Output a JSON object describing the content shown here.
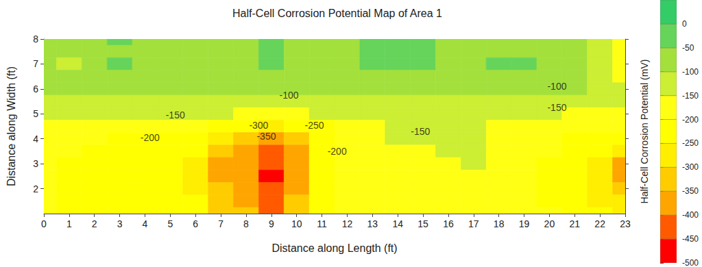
{
  "chart_data": {
    "type": "heatmap",
    "title": "Half-Cell Corrosion Potential Map of Area 1",
    "xlabel": "Distance along Length (ft)",
    "ylabel": "Distance along Width (ft)",
    "xlim": [
      0,
      23
    ],
    "ylim": [
      1,
      8
    ],
    "xticks": [
      0,
      1,
      2,
      3,
      4,
      5,
      6,
      7,
      8,
      9,
      10,
      11,
      12,
      13,
      14,
      15,
      16,
      17,
      18,
      19,
      20,
      21,
      22,
      23
    ],
    "yticks": [
      2,
      3,
      4,
      5,
      6,
      7,
      8
    ],
    "grid": false,
    "x": [
      0,
      1,
      2,
      3,
      4,
      5,
      6,
      7,
      8,
      9,
      10,
      11,
      12,
      13,
      14,
      15,
      16,
      17,
      18,
      19,
      20,
      21,
      22,
      23
    ],
    "y": [
      8,
      7.5,
      7,
      6.5,
      6,
      5.5,
      5,
      4.5,
      4,
      3.5,
      3,
      2.5,
      2,
      1.5,
      1
    ],
    "cells": [
      [
        -90,
        -80,
        -75,
        -45,
        -60,
        -80,
        -85,
        -85,
        -80,
        -40,
        -75,
        -80,
        -60,
        -45,
        -40,
        -45,
        -60,
        -80,
        -75,
        -75,
        -90,
        -95,
        -130,
        -170
      ],
      [
        -90,
        -90,
        -80,
        -50,
        -60,
        -85,
        -90,
        -90,
        -80,
        -40,
        -75,
        -85,
        -65,
        -45,
        -40,
        -45,
        -55,
        -80,
        -50,
        -55,
        -85,
        -95,
        -140,
        -170
      ],
      [
        -90,
        -110,
        -85,
        -45,
        -75,
        -90,
        -90,
        -90,
        -80,
        -45,
        -75,
        -85,
        -75,
        -45,
        -40,
        -45,
        -50,
        -85,
        -45,
        -45,
        -80,
        -95,
        -140,
        -165
      ],
      [
        -95,
        -95,
        -90,
        -75,
        -85,
        -90,
        -90,
        -90,
        -85,
        -70,
        -85,
        -90,
        -85,
        -70,
        -65,
        -70,
        -75,
        -90,
        -75,
        -80,
        -90,
        -95,
        -130,
        -160
      ],
      [
        -95,
        -95,
        -95,
        -95,
        -95,
        -95,
        -95,
        -95,
        -95,
        -95,
        -95,
        -95,
        -95,
        -95,
        -95,
        -95,
        -95,
        -95,
        -95,
        -95,
        -95,
        -95,
        -100,
        -140
      ],
      [
        -105,
        -105,
        -105,
        -105,
        -105,
        -105,
        -108,
        -110,
        -115,
        -120,
        -115,
        -108,
        -105,
        -105,
        -105,
        -105,
        -105,
        -108,
        -110,
        -110,
        -115,
        -115,
        -120,
        -145
      ],
      [
        -130,
        -130,
        -132,
        -133,
        -135,
        -135,
        -145,
        -145,
        -150,
        -160,
        -150,
        -145,
        -130,
        -130,
        -130,
        -130,
        -130,
        -140,
        -145,
        -145,
        -145,
        -150,
        -160,
        -165
      ],
      [
        -165,
        -165,
        -170,
        -170,
        -175,
        -180,
        -190,
        -215,
        -240,
        -260,
        -235,
        -200,
        -170,
        -155,
        -140,
        -130,
        -130,
        -140,
        -160,
        -165,
        -170,
        -175,
        -180,
        -185
      ],
      [
        -180,
        -185,
        -195,
        -200,
        -200,
        -205,
        -230,
        -280,
        -320,
        -390,
        -300,
        -215,
        -180,
        -160,
        -145,
        -135,
        -130,
        -145,
        -165,
        -175,
        -185,
        -200,
        -210,
        -230
      ],
      [
        -185,
        -195,
        -210,
        -210,
        -210,
        -215,
        -245,
        -340,
        -370,
        -430,
        -380,
        -225,
        -185,
        -175,
        -160,
        -150,
        -135,
        -145,
        -170,
        -180,
        -195,
        -215,
        -240,
        -270
      ],
      [
        -190,
        -205,
        -215,
        -210,
        -210,
        -215,
        -255,
        -360,
        -385,
        -445,
        -390,
        -230,
        -185,
        -180,
        -175,
        -165,
        -155,
        -140,
        -170,
        -185,
        -200,
        -240,
        -290,
        -360
      ],
      [
        -190,
        -210,
        -220,
        -210,
        -210,
        -215,
        -255,
        -360,
        -385,
        -450,
        -380,
        -230,
        -185,
        -180,
        -180,
        -175,
        -165,
        -160,
        -175,
        -185,
        -200,
        -240,
        -285,
        -355
      ],
      [
        -185,
        -205,
        -240,
        -210,
        -205,
        -210,
        -250,
        -345,
        -375,
        -445,
        -365,
        -225,
        -185,
        -180,
        -180,
        -180,
        -175,
        -170,
        -180,
        -185,
        -200,
        -235,
        -270,
        -310
      ],
      [
        -185,
        -200,
        -240,
        -210,
        -205,
        -210,
        -240,
        -320,
        -355,
        -430,
        -345,
        -220,
        -185,
        -180,
        -180,
        -180,
        -180,
        -180,
        -180,
        -185,
        -200,
        -225,
        -255,
        -285
      ],
      [
        -195,
        -200,
        -235,
        -210,
        -205,
        -210,
        -230,
        -300,
        -330,
        -410,
        -320,
        -210,
        -185,
        -180,
        -180,
        -180,
        -180,
        -180,
        -180,
        -180,
        -195,
        -215,
        -240,
        -265
      ]
    ],
    "contour_labels": [
      {
        "x": 9.7,
        "y": 5.75,
        "value": -100
      },
      {
        "x": 20.3,
        "y": 6.1,
        "value": -100
      },
      {
        "x": 5.2,
        "y": 4.95,
        "value": -150
      },
      {
        "x": 14.9,
        "y": 4.3,
        "value": -150
      },
      {
        "x": 20.3,
        "y": 5.25,
        "value": -150
      },
      {
        "x": 4.2,
        "y": 4.05,
        "value": -200
      },
      {
        "x": 11.6,
        "y": 3.5,
        "value": -200
      },
      {
        "x": 10.7,
        "y": 4.55,
        "value": -250
      },
      {
        "x": 8.5,
        "y": 4.55,
        "value": -300
      },
      {
        "x": 8.8,
        "y": 4.1,
        "value": -350
      }
    ],
    "colorbar": {
      "label": "Half-Cell Corrosion Potential (mV)",
      "range": [
        -500,
        50
      ],
      "ticks": [
        -500,
        -450,
        -400,
        -350,
        -300,
        -250,
        -200,
        -150,
        -100,
        -50,
        0
      ],
      "bands": [
        {
          "min": -500,
          "max": -450,
          "color": "#ff0000"
        },
        {
          "min": -450,
          "max": -400,
          "color": "#ff5a00"
        },
        {
          "min": -400,
          "max": -350,
          "color": "#ffa500"
        },
        {
          "min": -350,
          "max": -300,
          "color": "#ffcc00"
        },
        {
          "min": -300,
          "max": -250,
          "color": "#ffee00"
        },
        {
          "min": -250,
          "max": -200,
          "color": "#ffff00"
        },
        {
          "min": -200,
          "max": -150,
          "color": "#ffff14"
        },
        {
          "min": -150,
          "max": -100,
          "color": "#ccee33"
        },
        {
          "min": -100,
          "max": -50,
          "color": "#a3e03c"
        },
        {
          "min": -50,
          "max": 0,
          "color": "#66d45a"
        },
        {
          "min": 0,
          "max": 50,
          "color": "#33cc66"
        }
      ]
    }
  }
}
